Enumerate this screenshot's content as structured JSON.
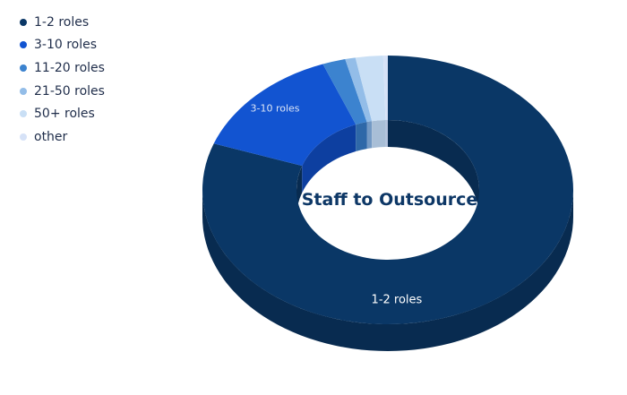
{
  "chart_data": {
    "type": "pie",
    "title": "Staff to Outsource",
    "legend_position": "top-left",
    "categories": [
      "1-2 roles",
      "3-10 roles",
      "11-20 roles",
      "21-50 roles",
      "50+ roles",
      "other"
    ],
    "values": [
      80.6,
      13.7,
      2.0,
      0.9,
      2.4,
      0.4
    ],
    "colors": [
      "#0a3766",
      "#1254d1",
      "#3c83cf",
      "#93bde8",
      "#c9dff5",
      "#d6e2f7"
    ],
    "side_colors": [
      "#082b50",
      "#0d3fa0",
      "#2e68a8",
      "#7399c4",
      "#a8bed6",
      "#b4c3dd"
    ],
    "data_labels": [
      {
        "category": "1-2 roles",
        "text": "1-2 roles",
        "color": "#ffffff"
      },
      {
        "category": "3-10 roles",
        "text": "3-10 roles",
        "color": "#dbe4f5"
      }
    ],
    "title_color": "#0d3766"
  }
}
